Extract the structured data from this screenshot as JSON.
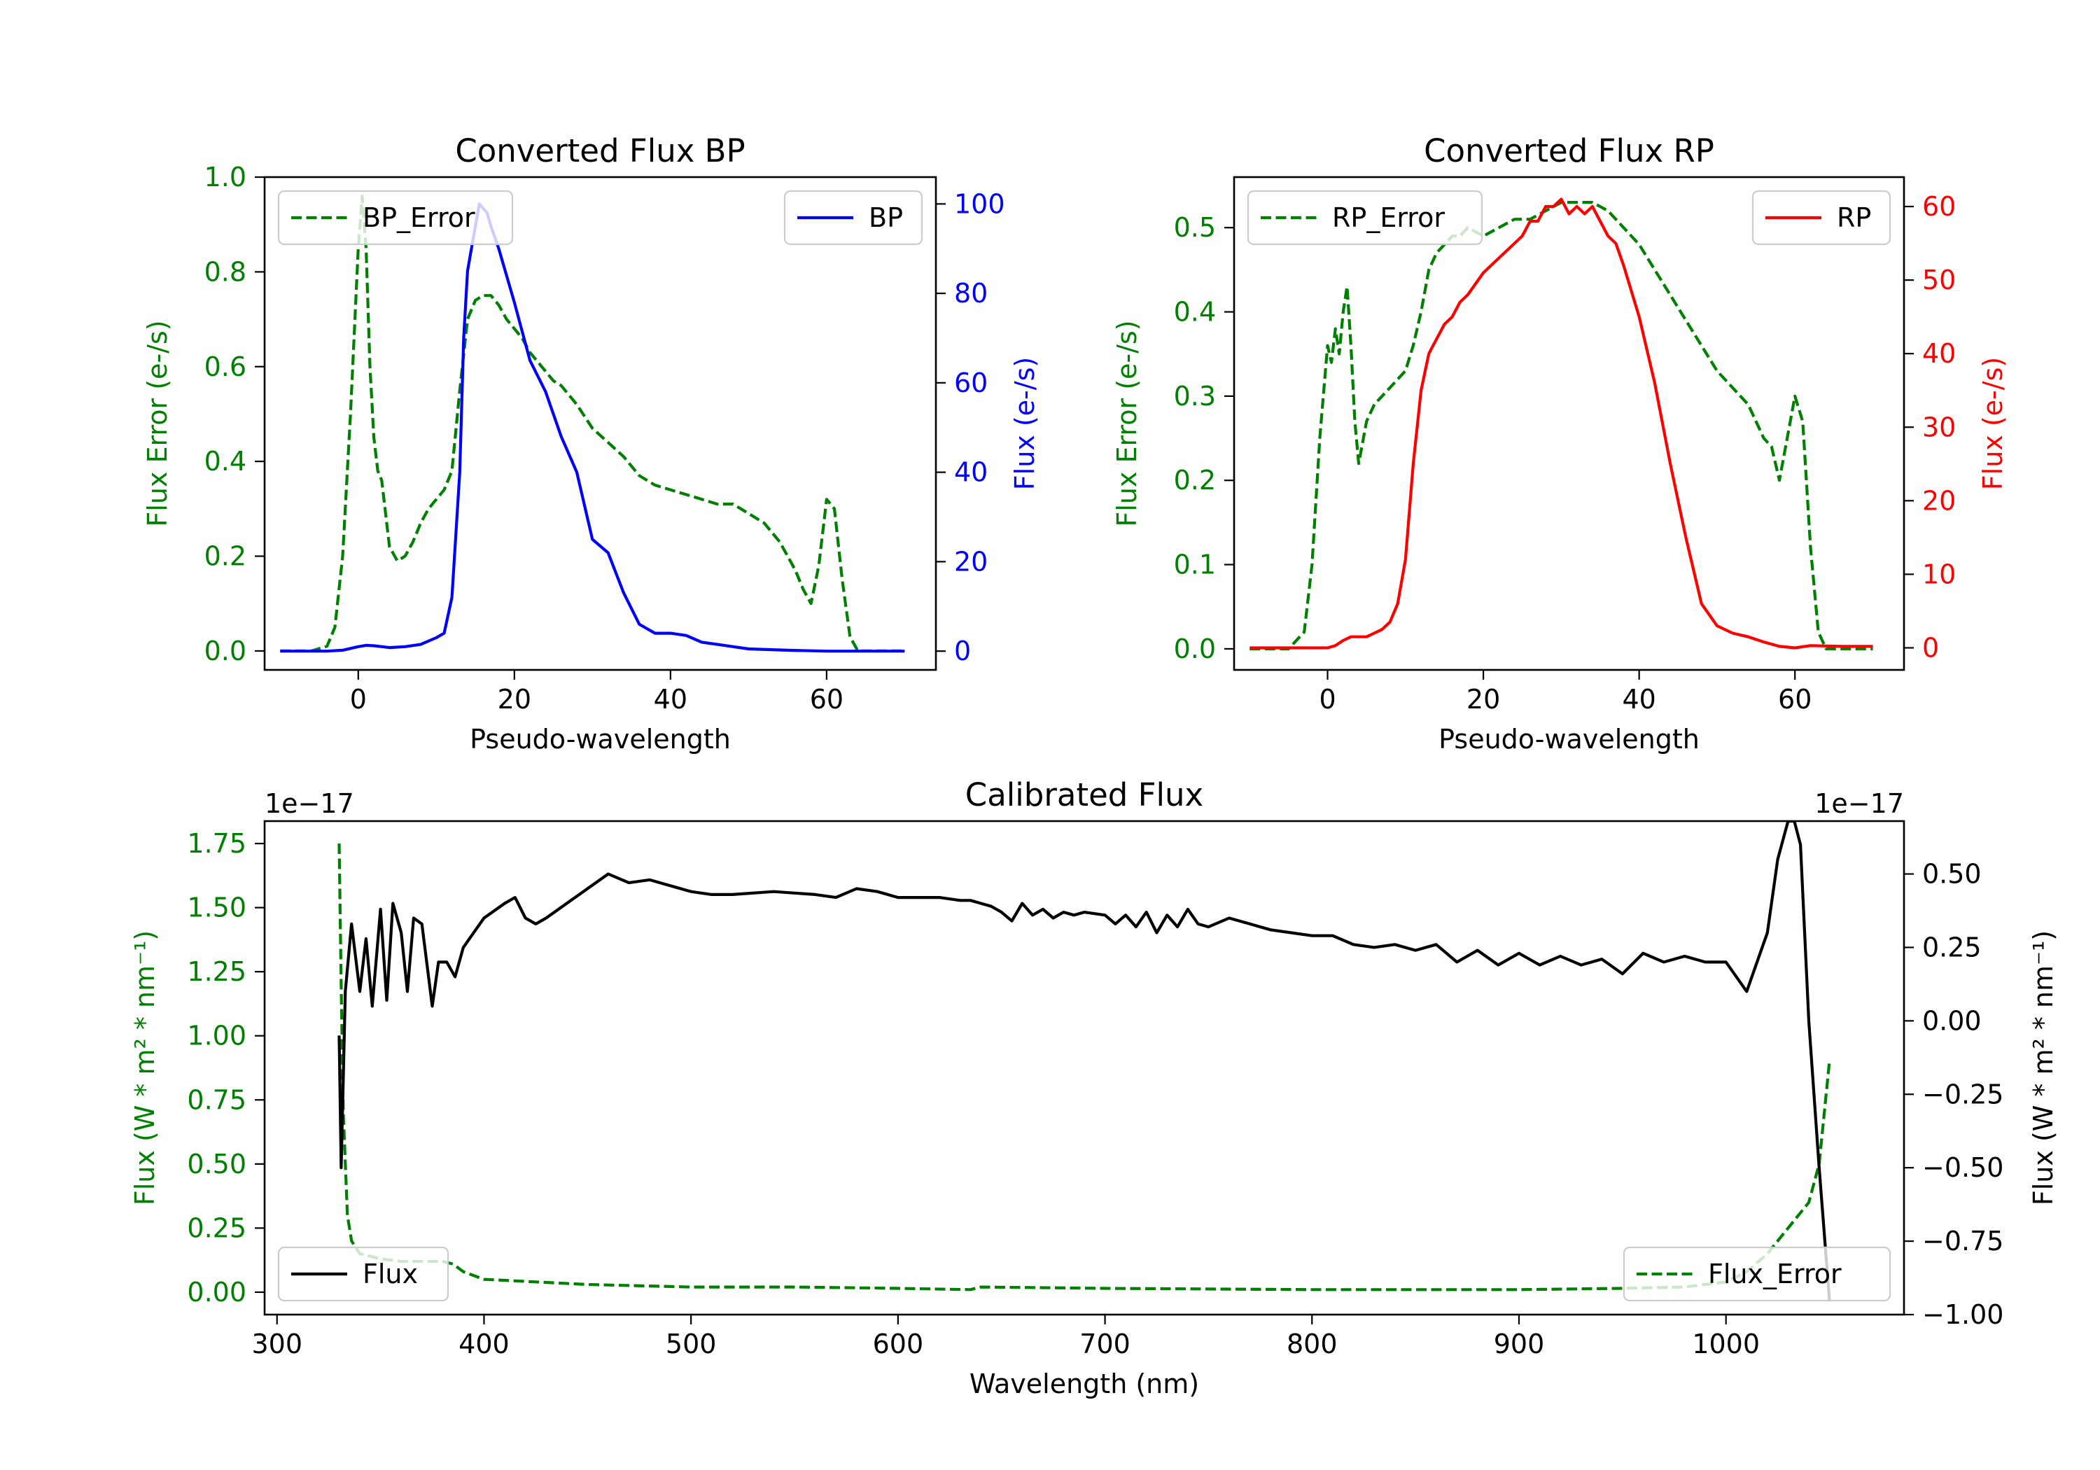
{
  "chart_data": [
    {
      "id": "bp",
      "type": "line",
      "title": "Converted Flux BP",
      "xlabel": "Pseudo-wavelength",
      "xlim": [
        -12,
        74
      ],
      "xticks": [
        0,
        20,
        40,
        60
      ],
      "left_axis": {
        "label": "Flux Error (e-/s)",
        "color": "#008000",
        "ylim": [
          -0.04,
          1.0
        ],
        "ticks": [
          0.0,
          0.2,
          0.4,
          0.6,
          0.8,
          1.0
        ],
        "tick_labels": [
          "0.0",
          "0.2",
          "0.4",
          "0.6",
          "0.8",
          "1.0"
        ]
      },
      "right_axis": {
        "label": "Flux (e-/s)",
        "color": "#0000ff",
        "ylim": [
          -4.2,
          106
        ],
        "ticks": [
          0,
          20,
          40,
          60,
          80,
          100
        ],
        "tick_labels": [
          "0",
          "20",
          "40",
          "60",
          "80",
          "100"
        ]
      },
      "series": [
        {
          "name": "BP_Error",
          "axis": "left",
          "color": "#008000",
          "dashed": true,
          "x": [
            -10,
            -6,
            -4,
            -3,
            -2,
            -1,
            0,
            0.5,
            1,
            1.5,
            2,
            2.5,
            3,
            4,
            5,
            6,
            7,
            8,
            9,
            10,
            11,
            12,
            13,
            14,
            15,
            16,
            17,
            18,
            19,
            20,
            21,
            22,
            23,
            24,
            25,
            26,
            27,
            28,
            30,
            32,
            34,
            36,
            38,
            40,
            42,
            44,
            46,
            48,
            50,
            52,
            54,
            56,
            57,
            58,
            59,
            60,
            61,
            62,
            63,
            64,
            66,
            70
          ],
          "y": [
            0.0,
            0.0,
            0.01,
            0.05,
            0.2,
            0.5,
            0.85,
            0.96,
            0.85,
            0.6,
            0.45,
            0.38,
            0.36,
            0.22,
            0.19,
            0.2,
            0.23,
            0.27,
            0.3,
            0.32,
            0.34,
            0.38,
            0.55,
            0.7,
            0.74,
            0.75,
            0.75,
            0.73,
            0.7,
            0.68,
            0.66,
            0.63,
            0.61,
            0.59,
            0.57,
            0.56,
            0.54,
            0.52,
            0.47,
            0.44,
            0.41,
            0.37,
            0.35,
            0.34,
            0.33,
            0.32,
            0.31,
            0.31,
            0.29,
            0.27,
            0.23,
            0.17,
            0.13,
            0.1,
            0.18,
            0.32,
            0.3,
            0.15,
            0.03,
            0.0,
            0.0,
            0.0
          ]
        },
        {
          "name": "BP",
          "axis": "right",
          "color": "#0000ff",
          "dashed": false,
          "x": [
            -10,
            -4,
            -2,
            0,
            1,
            2,
            4,
            6,
            8,
            10,
            11,
            12,
            13,
            13.5,
            14,
            14.5,
            15,
            15.5,
            16,
            16.5,
            17,
            18,
            20,
            22,
            24,
            26,
            28,
            30,
            32,
            34,
            36,
            38,
            40,
            42,
            44,
            46,
            48,
            50,
            55,
            60,
            70
          ],
          "y": [
            0.0,
            0.0,
            0.2,
            1.0,
            1.3,
            1.2,
            0.8,
            1.0,
            1.5,
            3.0,
            4.0,
            12.0,
            40.0,
            70.0,
            85.0,
            90.0,
            95.0,
            100.0,
            99.0,
            98.0,
            95.0,
            90.0,
            78.0,
            65.0,
            58.0,
            48.0,
            40.0,
            25.0,
            22.0,
            13.0,
            6.0,
            4.0,
            4.0,
            3.5,
            2.0,
            1.5,
            1.0,
            0.5,
            0.2,
            0.0,
            0.0
          ]
        }
      ],
      "legend": [
        {
          "label": "BP_Error",
          "position": "upper-left"
        },
        {
          "label": "BP",
          "position": "upper-right"
        }
      ]
    },
    {
      "id": "rp",
      "type": "line",
      "title": "Converted Flux RP",
      "xlabel": "Pseudo-wavelength",
      "xlim": [
        -12,
        74
      ],
      "xticks": [
        0,
        20,
        40,
        60
      ],
      "left_axis": {
        "label": "Flux Error (e-/s)",
        "color": "#008000",
        "ylim": [
          -0.025,
          0.56
        ],
        "ticks": [
          0.0,
          0.1,
          0.2,
          0.3,
          0.4,
          0.5
        ],
        "tick_labels": [
          "0.0",
          "0.1",
          "0.2",
          "0.3",
          "0.4",
          "0.5"
        ]
      },
      "right_axis": {
        "label": "Flux (e-/s)",
        "color": "#ff0000",
        "ylim": [
          -3.0,
          64.0
        ],
        "ticks": [
          0,
          10,
          20,
          30,
          40,
          50,
          60
        ],
        "tick_labels": [
          "0",
          "10",
          "20",
          "30",
          "40",
          "50",
          "60"
        ]
      },
      "series": [
        {
          "name": "RP_Error",
          "axis": "left",
          "color": "#008000",
          "dashed": true,
          "x": [
            -10,
            -5,
            -3,
            -2,
            -1,
            0,
            0.5,
            1,
            1.5,
            2,
            2.5,
            3,
            3.5,
            4,
            5,
            6,
            7,
            8,
            9,
            10,
            11,
            12,
            13,
            14,
            15,
            16,
            17,
            18,
            20,
            22,
            24,
            26,
            28,
            30,
            32,
            34,
            36,
            38,
            40,
            42,
            44,
            46,
            48,
            50,
            52,
            54,
            55,
            56,
            57,
            58,
            59,
            60,
            61,
            62,
            63,
            64,
            66,
            70
          ],
          "y": [
            0.0,
            0.0,
            0.02,
            0.1,
            0.25,
            0.36,
            0.34,
            0.38,
            0.35,
            0.4,
            0.43,
            0.36,
            0.27,
            0.22,
            0.27,
            0.29,
            0.3,
            0.31,
            0.32,
            0.33,
            0.36,
            0.4,
            0.45,
            0.47,
            0.48,
            0.49,
            0.49,
            0.5,
            0.49,
            0.5,
            0.51,
            0.51,
            0.52,
            0.53,
            0.53,
            0.53,
            0.52,
            0.5,
            0.48,
            0.45,
            0.42,
            0.39,
            0.36,
            0.33,
            0.31,
            0.29,
            0.27,
            0.25,
            0.24,
            0.2,
            0.25,
            0.3,
            0.27,
            0.12,
            0.02,
            0.0,
            0.0,
            0.0
          ]
        },
        {
          "name": "RP",
          "axis": "right",
          "color": "#ff0000",
          "dashed": false,
          "x": [
            -10,
            -5,
            -2,
            0,
            1,
            2,
            3,
            4,
            5,
            6,
            7,
            8,
            9,
            10,
            11,
            12,
            13,
            14,
            15,
            16,
            17,
            18,
            20,
            22,
            24,
            25,
            26,
            27,
            28,
            29,
            30,
            31,
            32,
            33,
            34,
            35,
            36,
            37,
            38,
            40,
            42,
            44,
            46,
            48,
            50,
            52,
            54,
            56,
            58,
            60,
            62,
            66,
            70
          ],
          "y": [
            0.0,
            0.0,
            0.0,
            0.0,
            0.3,
            1.0,
            1.5,
            1.5,
            1.5,
            2.0,
            2.5,
            3.5,
            6.0,
            12.0,
            25.0,
            35.0,
            40.0,
            42.0,
            44.0,
            45.0,
            47.0,
            48.0,
            51.0,
            53.0,
            55.0,
            56.0,
            58.0,
            58.0,
            60.0,
            60.0,
            61.0,
            59.0,
            60.0,
            59.0,
            60.0,
            58.0,
            56.0,
            55.0,
            52.0,
            45.0,
            36.0,
            25.0,
            15.0,
            6.0,
            3.0,
            2.0,
            1.5,
            0.8,
            0.2,
            0.0,
            0.3,
            0.2,
            0.2
          ]
        }
      ],
      "legend": [
        {
          "label": "RP_Error",
          "position": "upper-left"
        },
        {
          "label": "RP",
          "position": "upper-right"
        }
      ]
    },
    {
      "id": "cal",
      "type": "line",
      "title": "Calibrated Flux",
      "xlabel": "Wavelength (nm)",
      "xlim": [
        294,
        1086
      ],
      "xticks": [
        300,
        400,
        500,
        600,
        700,
        800,
        900,
        1000
      ],
      "left_axis": {
        "label": "Flux (W * m² * nm⁻¹)",
        "color": "#008000",
        "offset_text": "1e−17",
        "ylim": [
          -0.0875,
          1.8375
        ],
        "ticks": [
          0.0,
          0.25,
          0.5,
          0.75,
          1.0,
          1.25,
          1.5,
          1.75
        ],
        "tick_labels": [
          "0.00",
          "0.25",
          "0.50",
          "0.75",
          "1.00",
          "1.25",
          "1.50",
          "1.75"
        ]
      },
      "right_axis": {
        "label": "Flux (W * m² * nm⁻¹)",
        "color": "#000000",
        "offset_text": "1e−17",
        "ylim": [
          -1.0,
          0.68
        ],
        "ticks": [
          -1.0,
          -0.75,
          -0.5,
          -0.25,
          0.0,
          0.25,
          0.5
        ],
        "tick_labels": [
          "−1.00",
          "−0.75",
          "−0.50",
          "−0.25",
          "0.00",
          "0.25",
          "0.50"
        ]
      },
      "series": [
        {
          "name": "Flux_Error",
          "axis": "left",
          "color": "#008000",
          "dashed": true,
          "x": [
            330,
            331,
            332,
            334,
            336,
            340,
            350,
            360,
            370,
            380,
            385,
            390,
            400,
            450,
            500,
            550,
            600,
            635,
            640,
            700,
            800,
            900,
            950,
            980,
            1000,
            1010,
            1020,
            1030,
            1040,
            1045,
            1050
          ],
          "y": [
            1.75,
            1.2,
            0.7,
            0.3,
            0.2,
            0.15,
            0.13,
            0.12,
            0.12,
            0.12,
            0.11,
            0.08,
            0.05,
            0.03,
            0.02,
            0.02,
            0.015,
            0.01,
            0.02,
            0.015,
            0.01,
            0.01,
            0.015,
            0.02,
            0.04,
            0.08,
            0.15,
            0.25,
            0.35,
            0.5,
            0.9
          ]
        },
        {
          "name": "Flux",
          "axis": "right",
          "color": "#000000",
          "dashed": false,
          "x": [
            330,
            331,
            333,
            336,
            340,
            343,
            346,
            350,
            353,
            356,
            360,
            363,
            366,
            370,
            375,
            378,
            382,
            386,
            390,
            400,
            410,
            415,
            420,
            425,
            430,
            440,
            450,
            460,
            470,
            480,
            490,
            500,
            510,
            520,
            540,
            560,
            570,
            580,
            590,
            600,
            620,
            630,
            635,
            640,
            645,
            650,
            655,
            660,
            665,
            670,
            675,
            680,
            685,
            690,
            700,
            705,
            710,
            715,
            720,
            725,
            730,
            735,
            740,
            745,
            750,
            760,
            770,
            780,
            790,
            800,
            810,
            820,
            830,
            840,
            850,
            860,
            870,
            880,
            890,
            900,
            910,
            920,
            930,
            940,
            950,
            960,
            970,
            980,
            990,
            1000,
            1010,
            1020,
            1025,
            1030,
            1033,
            1036,
            1040,
            1045,
            1050
          ],
          "y": [
            -0.05,
            -0.5,
            0.1,
            0.33,
            0.1,
            0.28,
            0.05,
            0.38,
            0.07,
            0.4,
            0.3,
            0.1,
            0.35,
            0.33,
            0.05,
            0.2,
            0.2,
            0.15,
            0.25,
            0.35,
            0.4,
            0.42,
            0.35,
            0.33,
            0.35,
            0.4,
            0.45,
            0.5,
            0.47,
            0.48,
            0.46,
            0.44,
            0.43,
            0.43,
            0.44,
            0.43,
            0.42,
            0.45,
            0.44,
            0.42,
            0.42,
            0.41,
            0.41,
            0.4,
            0.39,
            0.37,
            0.34,
            0.4,
            0.36,
            0.38,
            0.35,
            0.37,
            0.36,
            0.37,
            0.36,
            0.33,
            0.36,
            0.32,
            0.37,
            0.3,
            0.36,
            0.32,
            0.38,
            0.33,
            0.32,
            0.35,
            0.33,
            0.31,
            0.3,
            0.29,
            0.29,
            0.26,
            0.25,
            0.26,
            0.24,
            0.26,
            0.2,
            0.24,
            0.19,
            0.23,
            0.19,
            0.22,
            0.19,
            0.21,
            0.16,
            0.23,
            0.2,
            0.22,
            0.2,
            0.2,
            0.1,
            0.3,
            0.55,
            0.68,
            0.68,
            0.6,
            0.0,
            -0.5,
            -0.95
          ]
        }
      ],
      "legend": [
        {
          "label": "Flux",
          "position": "lower-left"
        },
        {
          "label": "Flux_Error",
          "position": "lower-right"
        }
      ]
    }
  ]
}
